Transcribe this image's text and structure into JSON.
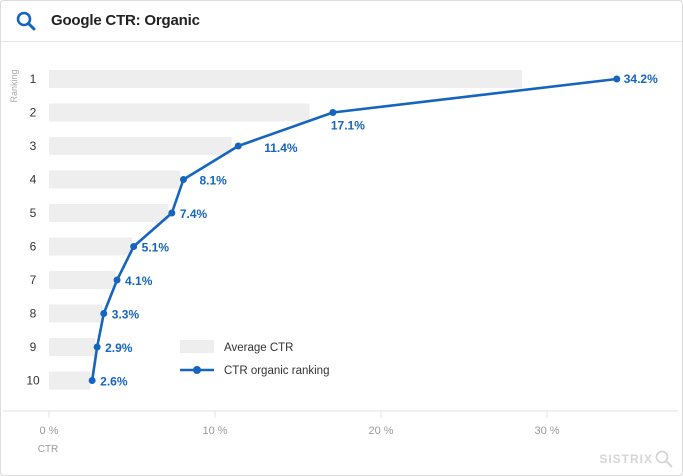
{
  "header": {
    "title": "Google CTR: Organic",
    "icon": "search-icon",
    "accent": "#1565c0"
  },
  "brand": {
    "name": "SISTRIX"
  },
  "chart_data": {
    "type": "bar",
    "orientation": "horizontal",
    "title": "Google CTR: Organic",
    "ylabel": "Ranking",
    "xlabel": "CTR",
    "categories": [
      "1",
      "2",
      "3",
      "4",
      "5",
      "6",
      "7",
      "8",
      "9",
      "10"
    ],
    "xlim": [
      0,
      38
    ],
    "xticks": [
      0,
      10,
      20,
      30
    ],
    "xtick_labels": [
      "0 %",
      "10 %",
      "20 %",
      "30 %"
    ],
    "series": [
      {
        "name": "Average CTR",
        "type": "bar",
        "color": "#eeeeee",
        "values": [
          28.5,
          15.7,
          11.0,
          7.9,
          7.2,
          5.0,
          4.0,
          3.2,
          2.8,
          2.5
        ]
      },
      {
        "name": "CTR organic ranking",
        "type": "line",
        "color": "#1565c0",
        "values": [
          34.2,
          17.1,
          11.4,
          8.1,
          7.4,
          5.1,
          4.1,
          3.3,
          2.9,
          2.6
        ],
        "labels": [
          "34.2%",
          "17.1%",
          "11.4%",
          "8.1%",
          "7.4%",
          "5.1%",
          "4.1%",
          "3.3%",
          "2.9%",
          "2.6%"
        ]
      }
    ],
    "legend": {
      "position": "bottom-center"
    },
    "grid": true
  }
}
